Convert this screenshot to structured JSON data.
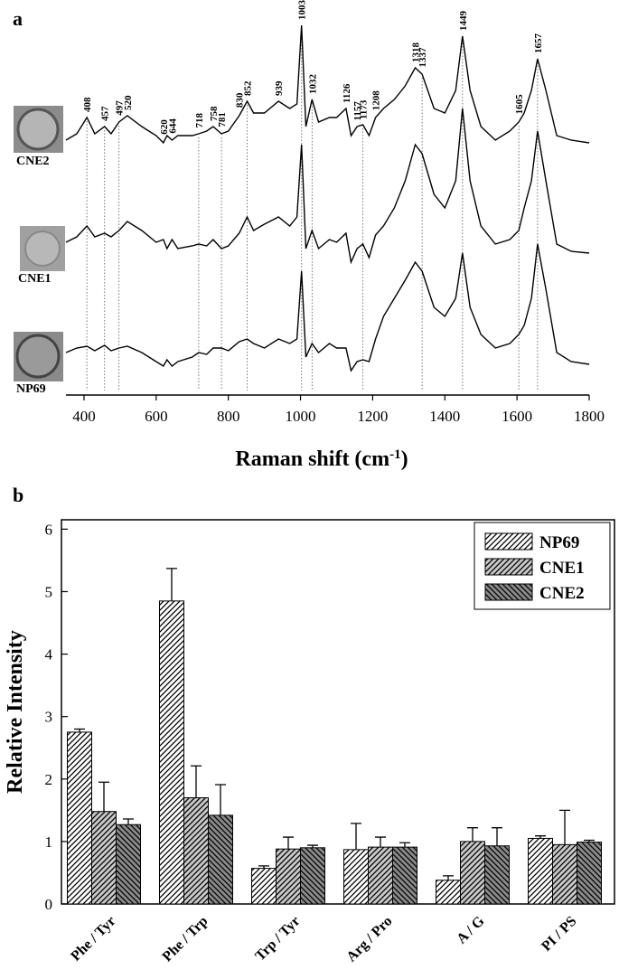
{
  "chart_data": [
    {
      "type": "spectra",
      "panel": "a",
      "xlabel": [
        "Raman shift (cm",
        "-1",
        ")"
      ],
      "xlim": [
        350,
        1800
      ],
      "xticks": [
        400,
        600,
        800,
        1000,
        1200,
        1400,
        1600,
        1800
      ],
      "ylim": [
        0,
        420
      ],
      "x": [
        350,
        380,
        408,
        430,
        457,
        475,
        497,
        520,
        560,
        600,
        620,
        630,
        644,
        660,
        700,
        718,
        740,
        758,
        781,
        800,
        830,
        852,
        870,
        900,
        939,
        970,
        990,
        1003,
        1015,
        1032,
        1050,
        1080,
        1100,
        1126,
        1140,
        1157,
        1173,
        1190,
        1208,
        1230,
        1260,
        1290,
        1318,
        1337,
        1370,
        1400,
        1430,
        1449,
        1470,
        1500,
        1540,
        1580,
        1605,
        1620,
        1640,
        1657,
        1680,
        1710,
        1750,
        1800
      ],
      "series": [
        {
          "name": "CNE2",
          "color": "#000",
          "values": [
            285,
            292,
            310,
            292,
            300,
            292,
            305,
            312,
            300,
            290,
            282,
            290,
            285,
            290,
            290,
            292,
            295,
            300,
            292,
            295,
            312,
            328,
            315,
            315,
            328,
            320,
            325,
            412,
            300,
            330,
            305,
            310,
            310,
            320,
            290,
            300,
            302,
            290,
            310,
            320,
            330,
            345,
            365,
            358,
            320,
            315,
            340,
            400,
            340,
            300,
            285,
            295,
            305,
            315,
            340,
            375,
            340,
            290,
            285,
            282
          ]
        },
        {
          "name": "CNE1",
          "color": "#000",
          "values": [
            172,
            178,
            190,
            178,
            182,
            178,
            185,
            195,
            185,
            172,
            175,
            165,
            175,
            165,
            168,
            170,
            168,
            175,
            165,
            168,
            182,
            200,
            185,
            192,
            200,
            190,
            200,
            280,
            165,
            185,
            165,
            175,
            172,
            182,
            150,
            165,
            170,
            155,
            180,
            190,
            210,
            240,
            280,
            270,
            225,
            210,
            240,
            320,
            240,
            190,
            170,
            175,
            185,
            210,
            240,
            295,
            240,
            170,
            162,
            160
          ]
        },
        {
          "name": "NP69",
          "color": "#000",
          "values": [
            50,
            55,
            57,
            52,
            58,
            52,
            55,
            57,
            50,
            40,
            35,
            42,
            35,
            40,
            45,
            50,
            48,
            55,
            55,
            52,
            62,
            65,
            60,
            55,
            65,
            60,
            65,
            140,
            45,
            60,
            50,
            60,
            55,
            55,
            30,
            40,
            42,
            40,
            65,
            90,
            110,
            130,
            150,
            140,
            100,
            90,
            110,
            160,
            100,
            70,
            55,
            60,
            70,
            80,
            110,
            170,
            120,
            50,
            40,
            37
          ]
        }
      ],
      "peaks": [
        408,
        457,
        497,
        520,
        620,
        644,
        718,
        758,
        781,
        830,
        852,
        939,
        1003,
        1032,
        1126,
        1157,
        1173,
        1208,
        1318,
        1337,
        1449,
        1605,
        1657
      ],
      "dotted_lines": [
        408,
        457,
        497,
        718,
        781,
        852,
        1003,
        1032,
        1173,
        1337,
        1449,
        1605,
        1657
      ]
    },
    {
      "type": "bar",
      "panel": "b",
      "ylabel": "Relative Intensity",
      "categories": [
        "Phe / Tyr",
        "Phe / Trp",
        "Trp / Tyr",
        "Arg / Pro",
        "A / G",
        "PI / PS"
      ],
      "ylim": [
        0,
        6.15
      ],
      "yticks": [
        0,
        1,
        2,
        3,
        4,
        5,
        6
      ],
      "legend": "top-right",
      "series": [
        {
          "name": "NP69",
          "color": "#ffffff",
          "pattern": "/",
          "values": [
            2.75,
            4.85,
            0.57,
            0.87,
            0.38,
            1.05
          ],
          "errors": [
            0.05,
            0.52,
            0.04,
            0.42,
            0.07,
            0.04
          ]
        },
        {
          "name": "CNE1",
          "color": "#c8c8c8",
          "pattern": "/",
          "values": [
            1.48,
            1.7,
            0.88,
            0.91,
            1.0,
            0.95
          ],
          "errors": [
            0.47,
            0.51,
            0.19,
            0.16,
            0.22,
            0.55
          ]
        },
        {
          "name": "CNE2",
          "color": "#8a8a8a",
          "pattern": "\\",
          "values": [
            1.27,
            1.42,
            0.9,
            0.91,
            0.93,
            0.99
          ],
          "errors": [
            0.09,
            0.49,
            0.04,
            0.07,
            0.29,
            0.03
          ]
        }
      ]
    }
  ]
}
